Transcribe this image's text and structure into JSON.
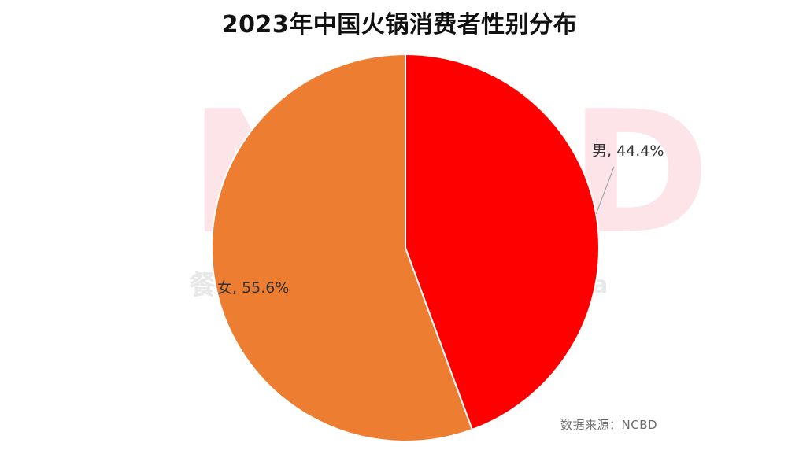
{
  "title": "2023年中国火锅消费者性别分布",
  "watermark": {
    "logo_text": "NCBD",
    "sub_text": "餐",
    "tail_text": "a"
  },
  "source": "数据来源：NCBD",
  "chart_data": {
    "type": "pie",
    "title": "2023年中国火锅消费者性别分布",
    "slices": [
      {
        "label": "男",
        "value": 44.4,
        "display": "男, 44.4%",
        "color": "#ff0000"
      },
      {
        "label": "女",
        "value": 55.6,
        "display": "女, 55.6%",
        "color": "#ed7d31"
      }
    ],
    "start_angle_deg": 0,
    "direction": "clockwise",
    "legend": "none",
    "data_labels": "outside-with-leader-line"
  }
}
